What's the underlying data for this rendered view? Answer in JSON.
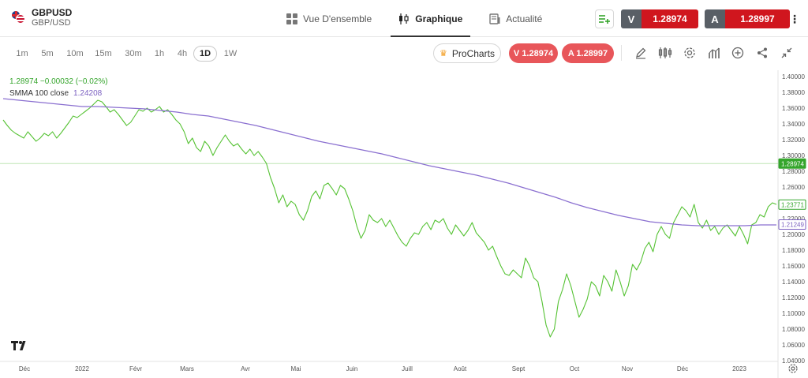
{
  "instrument": {
    "symbol": "GBPUSD",
    "name": "GBP/USD"
  },
  "nav": {
    "tabs": [
      {
        "label": "Vue D'ensemble",
        "icon": "grid-icon"
      },
      {
        "label": "Graphique",
        "icon": "candles-icon"
      },
      {
        "label": "Actualité",
        "icon": "news-icon"
      }
    ],
    "active_index": 1
  },
  "trade": {
    "sell_label": "V",
    "sell_price": "1.28974",
    "buy_label": "A",
    "buy_price": "1.28997"
  },
  "timeframes": [
    "1m",
    "5m",
    "10m",
    "15m",
    "30m",
    "1h",
    "4h",
    "1D",
    "1W"
  ],
  "active_timeframe": "1D",
  "toolbar": {
    "procharts_label": "ProCharts",
    "sell_pill": "V 1.28974",
    "buy_pill": "A 1.28997",
    "tools": [
      "pencil-icon",
      "indicators-icon",
      "gear-icon",
      "bar-chart-icon",
      "plus-circle-icon",
      "share-icon",
      "collapse-icon"
    ]
  },
  "legend": {
    "price_line": "1.28974  −0.00032 (−0.02%)",
    "smma_label": "SMMA 100 close",
    "smma_value": "1.24208"
  },
  "colors": {
    "price": "#55c233",
    "smma": "#8a6fd0",
    "sell": "#d0161e",
    "pill": "#e8565a",
    "current": "#35a52c"
  },
  "chart_data": {
    "type": "line",
    "ylim": [
      1.04,
      1.4
    ],
    "y_ticks": [
      "1.40000",
      "1.38000",
      "1.36000",
      "1.34000",
      "1.32000",
      "1.30000",
      "1.28000",
      "1.26000",
      "1.24000",
      "1.22000",
      "1.20000",
      "1.18000",
      "1.16000",
      "1.14000",
      "1.12000",
      "1.10000",
      "1.08000",
      "1.06000",
      "1.04000"
    ],
    "x_labels": [
      "Déc",
      "2022",
      "Févr",
      "Mars",
      "Avr",
      "Mai",
      "Juin",
      "Juill",
      "Août",
      "Sept",
      "Oct",
      "Nov",
      "Déc",
      "2023"
    ],
    "price_markers": [
      {
        "value": 1.28974,
        "label": "1.28974",
        "color": "#35a52c",
        "filled": true
      },
      {
        "value": 1.23771,
        "label": "1.23771",
        "color": "#35a52c",
        "filled": false
      },
      {
        "value": 1.21249,
        "label": "1.21249",
        "color": "#7a5fc0",
        "filled": false
      }
    ],
    "series": [
      {
        "name": "GBPUSD",
        "values": [
          1.345,
          1.338,
          1.332,
          1.328,
          1.325,
          1.322,
          1.33,
          1.324,
          1.318,
          1.322,
          1.328,
          1.325,
          1.33,
          1.322,
          1.328,
          1.335,
          1.342,
          1.35,
          1.348,
          1.352,
          1.356,
          1.36,
          1.365,
          1.37,
          1.368,
          1.362,
          1.355,
          1.358,
          1.352,
          1.345,
          1.338,
          1.342,
          1.35,
          1.358,
          1.356,
          1.36,
          1.355,
          1.358,
          1.362,
          1.355,
          1.358,
          1.352,
          1.345,
          1.34,
          1.33,
          1.315,
          1.322,
          1.31,
          1.305,
          1.318,
          1.312,
          1.3,
          1.31,
          1.318,
          1.326,
          1.318,
          1.312,
          1.315,
          1.308,
          1.302,
          1.308,
          1.3,
          1.305,
          1.298,
          1.29,
          1.272,
          1.258,
          1.24,
          1.25,
          1.235,
          1.242,
          1.238,
          1.225,
          1.218,
          1.23,
          1.248,
          1.255,
          1.245,
          1.262,
          1.265,
          1.258,
          1.25,
          1.262,
          1.258,
          1.245,
          1.23,
          1.21,
          1.195,
          1.205,
          1.225,
          1.218,
          1.215,
          1.22,
          1.21,
          1.218,
          1.208,
          1.198,
          1.19,
          1.185,
          1.195,
          1.202,
          1.2,
          1.21,
          1.215,
          1.206,
          1.218,
          1.215,
          1.22,
          1.208,
          1.2,
          1.212,
          1.205,
          1.198,
          1.205,
          1.215,
          1.202,
          1.196,
          1.19,
          1.18,
          1.185,
          1.172,
          1.16,
          1.15,
          1.148,
          1.155,
          1.15,
          1.145,
          1.17,
          1.16,
          1.145,
          1.14,
          1.115,
          1.085,
          1.07,
          1.08,
          1.115,
          1.13,
          1.15,
          1.135,
          1.115,
          1.095,
          1.105,
          1.118,
          1.14,
          1.135,
          1.122,
          1.148,
          1.14,
          1.128,
          1.155,
          1.14,
          1.122,
          1.135,
          1.162,
          1.155,
          1.165,
          1.182,
          1.19,
          1.178,
          1.2,
          1.21,
          1.2,
          1.195,
          1.215,
          1.225,
          1.235,
          1.23,
          1.222,
          1.238,
          1.215,
          1.208,
          1.218,
          1.205,
          1.21,
          1.2,
          1.208,
          1.212,
          1.205,
          1.198,
          1.21,
          1.2,
          1.188,
          1.212,
          1.215,
          1.225,
          1.222,
          1.235,
          1.24,
          1.238
        ]
      },
      {
        "name": "SMMA 100 close",
        "values": [
          1.372,
          1.37,
          1.368,
          1.366,
          1.364,
          1.362,
          1.362,
          1.361,
          1.36,
          1.359,
          1.357,
          1.355,
          1.352,
          1.35,
          1.346,
          1.342,
          1.338,
          1.333,
          1.328,
          1.323,
          1.318,
          1.314,
          1.31,
          1.306,
          1.302,
          1.297,
          1.292,
          1.287,
          1.283,
          1.279,
          1.275,
          1.27,
          1.265,
          1.259,
          1.253,
          1.247,
          1.24,
          1.234,
          1.229,
          1.224,
          1.22,
          1.216,
          1.214,
          1.212,
          1.211,
          1.211,
          1.211,
          1.211,
          1.212,
          1.212
        ]
      }
    ]
  }
}
